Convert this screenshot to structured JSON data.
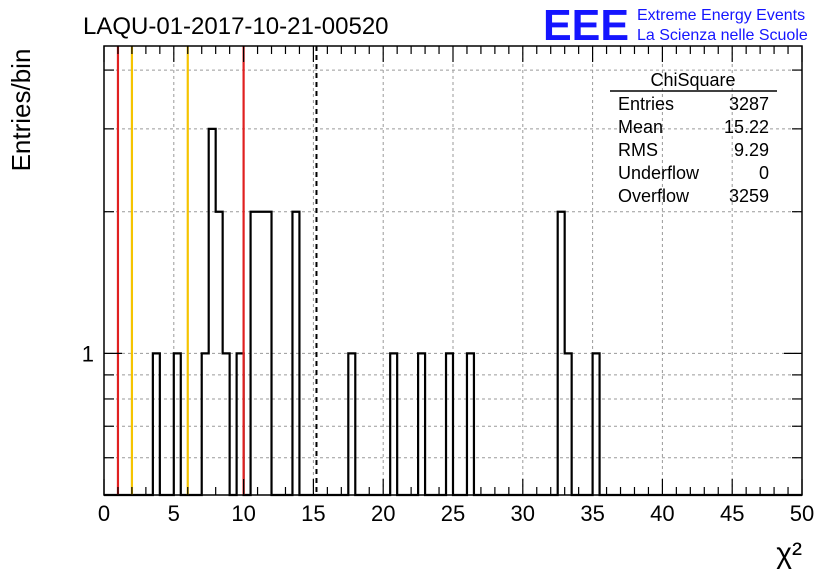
{
  "chart_data": {
    "type": "histogram",
    "title": "LAQU-01-2017-10-21-00520",
    "xlabel": "χ²",
    "ylabel": "Entries/bin",
    "xlim": [
      0,
      50
    ],
    "ylim": [
      0.5,
      4.5
    ],
    "y_scale": "log",
    "y_tick_labels": [
      {
        "value": 1,
        "label": "1"
      }
    ],
    "x_ticks": [
      0,
      5,
      10,
      15,
      20,
      25,
      30,
      35,
      40,
      45,
      50
    ],
    "grid": true,
    "bin_width": 0.5,
    "bins": [
      {
        "x": 3.5,
        "y": 1
      },
      {
        "x": 5.0,
        "y": 1
      },
      {
        "x": 7.0,
        "y": 1
      },
      {
        "x": 7.5,
        "y": 3
      },
      {
        "x": 8.0,
        "y": 2
      },
      {
        "x": 8.5,
        "y": 1
      },
      {
        "x": 9.5,
        "y": 1
      },
      {
        "x": 10.5,
        "y": 2
      },
      {
        "x": 11.0,
        "y": 2
      },
      {
        "x": 11.5,
        "y": 2
      },
      {
        "x": 13.5,
        "y": 2
      },
      {
        "x": 17.5,
        "y": 1
      },
      {
        "x": 20.5,
        "y": 1
      },
      {
        "x": 22.5,
        "y": 1
      },
      {
        "x": 24.5,
        "y": 1
      },
      {
        "x": 26.0,
        "y": 1
      },
      {
        "x": 32.5,
        "y": 2
      },
      {
        "x": 33.0,
        "y": 1
      },
      {
        "x": 35.0,
        "y": 1
      }
    ],
    "vertical_lines": [
      {
        "x": 1.0,
        "color": "#e02020",
        "style": "solid"
      },
      {
        "x": 2.0,
        "color": "#f5c400",
        "style": "solid"
      },
      {
        "x": 6.0,
        "color": "#f5c400",
        "style": "solid"
      },
      {
        "x": 10.0,
        "color": "#e02020",
        "style": "solid"
      },
      {
        "x": 15.22,
        "color": "#000000",
        "style": "dashed"
      }
    ],
    "stats_box": {
      "title": "ChiSquare",
      "rows": [
        {
          "label": "Entries",
          "value": "3287"
        },
        {
          "label": "Mean",
          "value": "15.22"
        },
        {
          "label": "RMS",
          "value": "9.29"
        },
        {
          "label": "Underflow",
          "value": "0"
        },
        {
          "label": "Overflow",
          "value": "3259"
        }
      ]
    }
  },
  "logo": {
    "mark": "EEE",
    "line1": "Extreme Energy Events",
    "line2": "La Scienza nelle Scuole"
  }
}
